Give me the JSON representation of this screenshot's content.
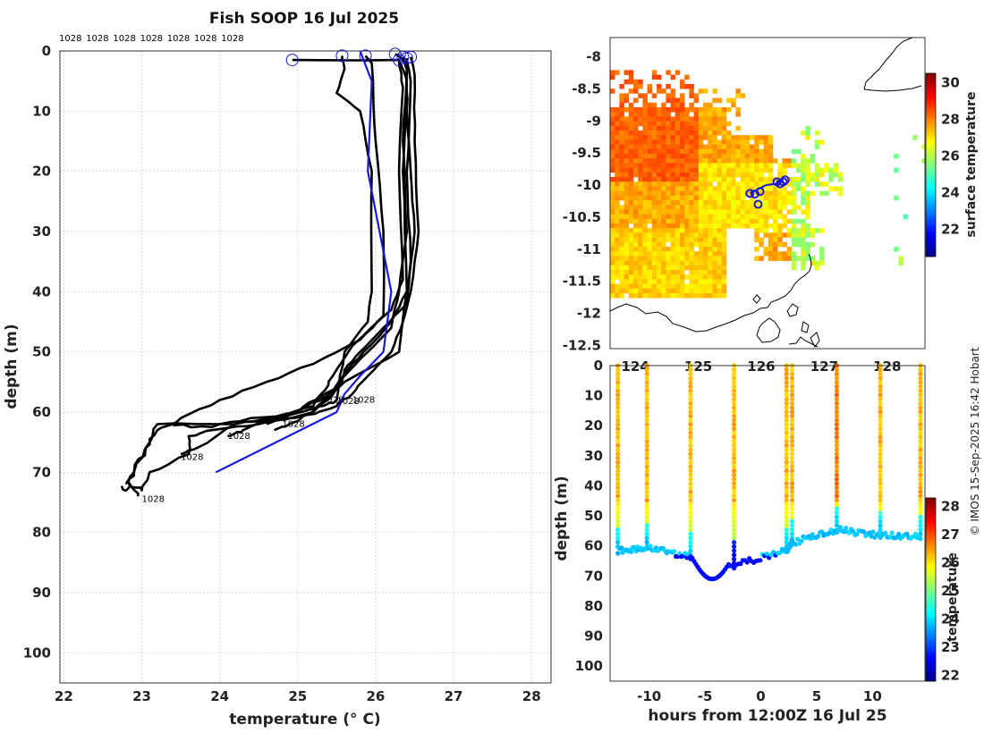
{
  "title": "Fish SOOP 16 Jul 2025",
  "credit": "© IMOS 15-Sep-2025 16:42 Hobart",
  "marker_label": "1028",
  "chart_data": [
    {
      "name": "profiles",
      "type": "line",
      "xlabel": "temperature (° C)",
      "ylabel": "depth (m)",
      "xlim": [
        21.95,
        28.25
      ],
      "ylim": [
        0,
        105
      ],
      "xticks": [
        22,
        23,
        24,
        25,
        26,
        27,
        28
      ],
      "yticks": [
        0,
        10,
        20,
        30,
        40,
        50,
        60,
        70,
        80,
        90,
        100
      ],
      "top_labels": [
        "1028",
        "1028",
        "1028",
        "1028",
        "1028",
        "1028",
        "1028"
      ],
      "series": [
        {
          "name": "profile-1",
          "color": "#000000",
          "points": [
            [
              24.93,
              1.5
            ],
            [
              26.3,
              1.5
            ],
            [
              26.4,
              5
            ],
            [
              26.35,
              20
            ],
            [
              26.4,
              40
            ],
            [
              26.3,
              50
            ],
            [
              25.6,
              55
            ],
            [
              25.2,
              60
            ],
            [
              24.5,
              62
            ],
            [
              23.9,
              63
            ],
            [
              23.6,
              64
            ],
            [
              23.6,
              67
            ],
            [
              23.1,
              70
            ],
            [
              23.0,
              73
            ],
            [
              22.85,
              72
            ],
            [
              22.95,
              74
            ]
          ]
        },
        {
          "name": "profile-2",
          "color": "#000000",
          "points": [
            [
              25.57,
              0.8
            ],
            [
              25.6,
              3
            ],
            [
              25.5,
              7
            ],
            [
              25.8,
              10
            ],
            [
              25.95,
              20
            ],
            [
              25.95,
              40
            ],
            [
              25.9,
              45
            ],
            [
              25.6,
              50
            ],
            [
              25.5,
              58
            ],
            [
              25.3,
              59
            ],
            [
              24.8,
              61
            ],
            [
              24.2,
              62
            ],
            [
              23.2,
              62
            ],
            [
              23.1,
              65
            ],
            [
              22.9,
              70
            ],
            [
              22.8,
              72
            ]
          ]
        },
        {
          "name": "profile-3",
          "color": "#000000",
          "points": [
            [
              25.87,
              0.8
            ],
            [
              25.95,
              2
            ],
            [
              26.0,
              15
            ],
            [
              26.1,
              30
            ],
            [
              26.1,
              44
            ],
            [
              25.8,
              48
            ],
            [
              25.2,
              52
            ],
            [
              24.6,
              55
            ],
            [
              24.0,
              58
            ],
            [
              23.5,
              61
            ],
            [
              23.2,
              63
            ],
            [
              23.05,
              66
            ],
            [
              22.9,
              70
            ],
            [
              22.8,
              73
            ],
            [
              22.75,
              72.5
            ]
          ]
        },
        {
          "name": "profile-4",
          "color": "#000000",
          "points": [
            [
              26.25,
              0.5
            ],
            [
              26.4,
              2
            ],
            [
              26.4,
              10
            ],
            [
              26.45,
              20
            ],
            [
              26.5,
              30
            ],
            [
              26.4,
              40
            ],
            [
              26.2,
              45
            ],
            [
              26.0,
              48
            ],
            [
              25.7,
              52
            ],
            [
              25.5,
              56
            ],
            [
              25.0,
              60
            ],
            [
              24.6,
              61
            ],
            [
              24.2,
              62
            ],
            [
              23.7,
              66
            ],
            [
              23.5,
              67
            ]
          ]
        },
        {
          "name": "profile-5",
          "color": "#000000",
          "points": [
            [
              26.35,
              1
            ],
            [
              26.4,
              3
            ],
            [
              26.35,
              15
            ],
            [
              26.4,
              30
            ],
            [
              26.3,
              40
            ],
            [
              26.2,
              46
            ],
            [
              25.9,
              50
            ],
            [
              25.6,
              54
            ],
            [
              25.4,
              57
            ],
            [
              25.2,
              59
            ],
            [
              24.7,
              61
            ],
            [
              24.3,
              63
            ],
            [
              24.1,
              64
            ]
          ]
        },
        {
          "name": "profile-6",
          "color": "#000000",
          "points": [
            [
              26.45,
              1
            ],
            [
              26.5,
              4
            ],
            [
              26.5,
              15
            ],
            [
              26.55,
              30
            ],
            [
              26.45,
              40
            ],
            [
              26.35,
              45
            ],
            [
              26.2,
              50
            ],
            [
              25.9,
              54
            ],
            [
              25.7,
              57
            ],
            [
              25.5,
              59
            ],
            [
              25.1,
              60.5
            ],
            [
              24.6,
              62
            ]
          ]
        },
        {
          "name": "profile-7",
          "color": "#000000",
          "points": [
            [
              26.4,
              1.2
            ],
            [
              26.45,
              5
            ],
            [
              26.4,
              20
            ],
            [
              26.45,
              35
            ],
            [
              26.4,
              42
            ],
            [
              26.1,
              46
            ],
            [
              25.8,
              50
            ],
            [
              25.6,
              53
            ],
            [
              25.5,
              56
            ],
            [
              25.3,
              58.5
            ],
            [
              25.0,
              61.5
            ],
            [
              24.7,
              63
            ]
          ]
        },
        {
          "name": "profile-8",
          "color": "#000000",
          "points": [
            [
              26.3,
              1.5
            ],
            [
              26.35,
              6
            ],
            [
              26.3,
              20
            ],
            [
              26.35,
              38
            ],
            [
              26.2,
              43
            ],
            [
              25.7,
              49
            ],
            [
              25.45,
              54
            ],
            [
              25.3,
              57
            ],
            [
              25.0,
              60
            ],
            [
              24.4,
              61
            ],
            [
              23.9,
              62.5
            ],
            [
              23.4,
              62.2
            ]
          ]
        },
        {
          "name": "profile-mean",
          "color": "#1a1ad6",
          "points": [
            [
              25.8,
              0
            ],
            [
              25.95,
              5
            ],
            [
              25.9,
              20
            ],
            [
              26.05,
              30
            ],
            [
              26.2,
              40
            ],
            [
              26.1,
              50
            ],
            [
              25.8,
              54
            ],
            [
              25.6,
              57
            ],
            [
              25.5,
              60
            ],
            [
              23.95,
              70
            ]
          ]
        }
      ],
      "start_markers": [
        [
          24.93,
          1.5
        ],
        [
          25.57,
          0.8
        ],
        [
          25.87,
          0.8
        ],
        [
          26.25,
          0.5
        ],
        [
          26.35,
          1
        ],
        [
          26.45,
          1
        ],
        [
          26.4,
          1.2
        ],
        [
          26.3,
          1.5
        ]
      ],
      "end_labels": [
        [
          23.0,
          74.5
        ],
        [
          23.5,
          67.5
        ],
        [
          24.1,
          64
        ],
        [
          24.8,
          62
        ],
        [
          25.3,
          58
        ],
        [
          25.5,
          58.2
        ],
        [
          25.7,
          58
        ]
      ]
    },
    {
      "name": "map",
      "type": "heatmap",
      "colorbar_label": "surface temperature",
      "xlim": [
        123.6,
        128.6
      ],
      "ylim": [
        -12.55,
        -7.7
      ],
      "xticks": [
        124,
        125,
        126,
        127,
        128
      ],
      "yticks": [
        -8,
        -8.5,
        -9,
        -9.5,
        -10,
        -10.5,
        -11,
        -11.5,
        -12,
        -12.5
      ],
      "xtick_labels": [
        "124",
        "125",
        "126",
        "127",
        "128"
      ],
      "ytick_labels": [
        "-8",
        "-8.5",
        "-9",
        "-9.5",
        "-10",
        "-10.5",
        "-11",
        "-11.5",
        "-12",
        "-12.5"
      ],
      "cbar_ticks": [
        22,
        24,
        26,
        28,
        30
      ],
      "clim": [
        20.5,
        30.5
      ],
      "track": [
        [
          125.82,
          -10.12
        ],
        [
          125.88,
          -10.1
        ],
        [
          126.08,
          -10.0
        ],
        [
          126.25,
          -9.98
        ],
        [
          126.35,
          -9.92
        ]
      ],
      "stations": [
        [
          125.82,
          -10.13
        ],
        [
          125.9,
          -10.14
        ],
        [
          125.95,
          -10.3
        ],
        [
          125.98,
          -10.1
        ],
        [
          126.25,
          -9.95
        ],
        [
          126.3,
          -9.98
        ],
        [
          126.35,
          -9.95
        ],
        [
          126.38,
          -9.92
        ]
      ]
    },
    {
      "name": "section",
      "type": "scatter",
      "xlabel": "hours from 12:00Z 16 Jul 25",
      "ylabel": "depth (m)",
      "colorbar_label": "temperature",
      "xlim": [
        -13.5,
        14.7
      ],
      "ylim": [
        0,
        105
      ],
      "xticks": [
        -10,
        -5,
        0,
        5,
        10
      ],
      "yticks": [
        0,
        10,
        20,
        30,
        40,
        50,
        60,
        70,
        80,
        90,
        100
      ],
      "cbar_ticks": [
        22,
        23,
        24,
        25,
        26,
        27,
        28
      ],
      "clim": [
        21.8,
        28.3
      ],
      "casts": [
        {
          "t": -12.8,
          "bottom": 61.5
        },
        {
          "t": -10.2,
          "bottom": 60.5
        },
        {
          "t": -6.3,
          "bottom": 63.5
        },
        {
          "t": -2.4,
          "bottom": 66.5
        },
        {
          "t": 2.3,
          "bottom": 61.5
        },
        {
          "t": 2.8,
          "bottom": 59
        },
        {
          "t": 6.8,
          "bottom": 54.5
        },
        {
          "t": 10.7,
          "bottom": 56.5
        },
        {
          "t": 14.3,
          "bottom": 57
        }
      ]
    }
  ]
}
